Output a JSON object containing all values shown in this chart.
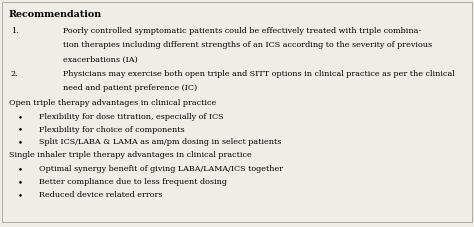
{
  "background_color": "#f0ede8",
  "border_color": "#aaaaaa",
  "title": "Recommendation",
  "title_fontsize": 6.8,
  "body_fontsize": 5.8,
  "section_fontsize": 5.8,
  "lines": [
    {
      "type": "numbered",
      "num": "1.",
      "text1": "Poorly controlled symptomatic patients could be effectively treated with triple combina-",
      "text2": "tion therapies including different strengths of an ICS according to the severity of previous",
      "text3": "exacerbations (IA)"
    },
    {
      "type": "numbered",
      "num": "2.",
      "text1": "Physicians may exercise both open triple and SITT options in clinical practice as per the clinical",
      "text2": "need and patient preference (IC)",
      "text3": null
    },
    {
      "type": "section",
      "text": "Open triple therapy advantages in clinical practice"
    },
    {
      "type": "bullet",
      "text": "Flexibility for dose titration, especially of ICS"
    },
    {
      "type": "bullet",
      "text": "Flexibility for choice of components"
    },
    {
      "type": "bullet",
      "text": "Split ICS/LABA & LAMA as am/pm dosing in select patients"
    },
    {
      "type": "section",
      "text": "Single inhaler triple therapy advantages in clinical practice"
    },
    {
      "type": "bullet",
      "text": "Optimal synergy benefit of giving LABA/LAMA/ICS together"
    },
    {
      "type": "bullet",
      "text": "Better compliance due to less frequent dosing"
    },
    {
      "type": "bullet",
      "text": "Reduced device related errors"
    }
  ]
}
